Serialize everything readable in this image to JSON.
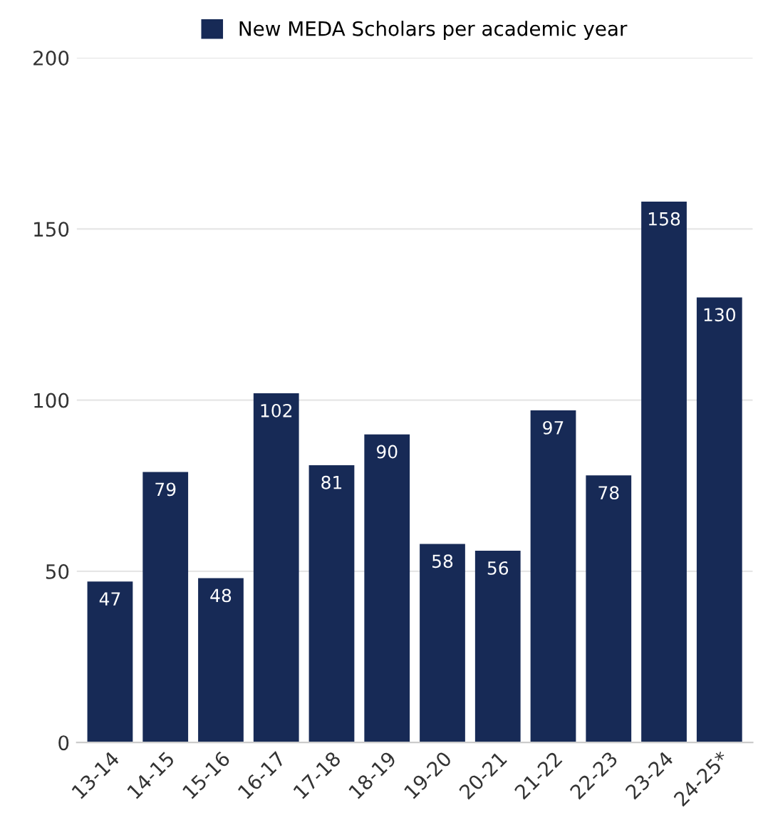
{
  "chart_data": {
    "type": "bar",
    "categories": [
      "13-14",
      "14-15",
      "15-16",
      "16-17",
      "17-18",
      "18-19",
      "19-20",
      "20-21",
      "21-22",
      "22-23",
      "23-24",
      "24-25*"
    ],
    "series": [
      {
        "name": "New MEDA Scholars per academic year",
        "color": "#172a56",
        "values": [
          47,
          79,
          48,
          102,
          81,
          90,
          58,
          56,
          97,
          78,
          158,
          130
        ]
      }
    ],
    "ylim": [
      0,
      200
    ],
    "yticks": [
      0,
      50,
      100,
      150,
      200
    ],
    "grid": "y",
    "legend": "top",
    "data_labels": true
  }
}
